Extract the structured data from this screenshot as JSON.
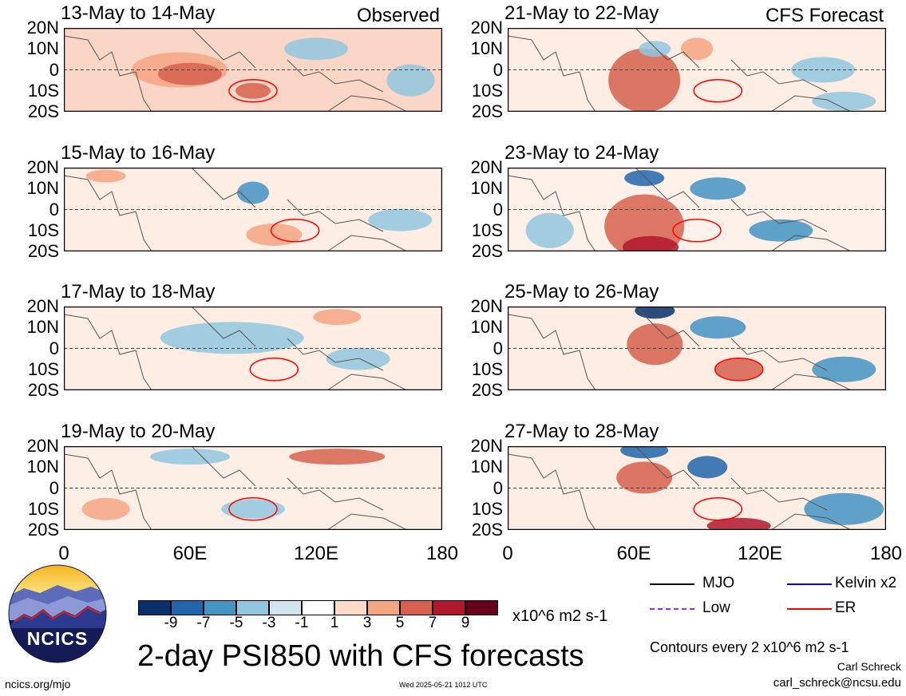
{
  "panels": [
    {
      "title": "13-May to 14-May",
      "header": "Observed"
    },
    {
      "title": "21-May to 22-May",
      "header": "CFS Forecast"
    },
    {
      "title": "15-May to 16-May",
      "header": ""
    },
    {
      "title": "23-May to 24-May",
      "header": ""
    },
    {
      "title": "17-May to 18-May",
      "header": ""
    },
    {
      "title": "25-May to 26-May",
      "header": ""
    },
    {
      "title": "19-May to 20-May",
      "header": ""
    },
    {
      "title": "27-May to 28-May",
      "header": ""
    }
  ],
  "lat_labels": [
    "20N",
    "10N",
    "0",
    "10S",
    "20S"
  ],
  "lon_labels": [
    "0",
    "60E",
    "120E",
    "180"
  ],
  "colorbar": {
    "colors": [
      "#08306b",
      "#2166ac",
      "#4393c3",
      "#92c5de",
      "#d1e5f0",
      "#ffffff",
      "#fddbc7",
      "#f4a582",
      "#d6604d",
      "#b2182b",
      "#67001f"
    ],
    "labels": [
      "-9",
      "-7",
      "-5",
      "-3",
      "-1",
      "1",
      "3",
      "5",
      "7",
      "9"
    ],
    "units": "x10^6 m2 s-1"
  },
  "legend": {
    "mjo": "MJO",
    "kelvin": "Kelvin x2",
    "low": "Low",
    "er": "ER",
    "mjo_color": "#000000",
    "kelvin_color": "#0000ff",
    "low_color": "#9b30d0",
    "er_color": "#ff0000"
  },
  "main_title": "2-day PSI850 with CFS forecasts",
  "contour_note": "Contours every 2 x10^6 m2 s-1",
  "author": "Carl Schreck",
  "email": "carl_schreck@ncsu.edu",
  "website": "ncics.org/mjo",
  "timestamp": "Wed 2025-05-21 1012 UTC",
  "logo_text": "NCICS"
}
